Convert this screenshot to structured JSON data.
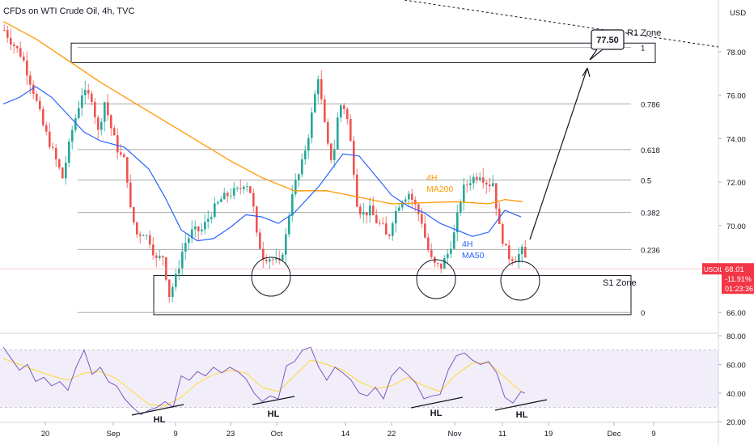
{
  "header": {
    "title": "CFDs on WTI Crude Oil, 4h, TVC",
    "currency": "USD"
  },
  "colors": {
    "bull": "#26a69a",
    "bear": "#ef5350",
    "ma50": "#2962ff",
    "ma200": "#ff9800",
    "rsi": "#7e57c2",
    "rsi_ma": "#fdd835",
    "price_badge": "#f23645"
  },
  "price_badge": {
    "symbol": "USOIL",
    "price": "68.01",
    "change": "-11.91%",
    "countdown": "01:23:36"
  },
  "chart_data": [
    {
      "type": "candlestick",
      "y_axis": {
        "ticks": [
          "78.00",
          "76.00",
          "74.00",
          "72.00",
          "70.00",
          "68.00",
          "66.00"
        ],
        "range": [
          64.8,
          79.2
        ]
      },
      "x_axis": {
        "ticks": [
          "20",
          "Sep",
          "9",
          "23",
          "Oct",
          "14",
          "22",
          "Nov",
          "11",
          "19",
          "Dec",
          "9"
        ]
      },
      "fibonacci": {
        "levels": [
          {
            "label": "1",
            "price": 78.2
          },
          {
            "label": "0.786",
            "price": 75.6
          },
          {
            "label": "0.618",
            "price": 73.5
          },
          {
            "label": "0.5",
            "price": 72.1
          },
          {
            "label": "0.382",
            "price": 70.6
          },
          {
            "label": "0.236",
            "price": 68.9
          },
          {
            "label": "0",
            "price": 66.0
          }
        ]
      },
      "zones": [
        {
          "label": "R1 Zone",
          "top": 78.4,
          "bottom": 77.5
        },
        {
          "label": "S1 Zone",
          "top": 67.7,
          "bottom": 65.9
        }
      ],
      "target": {
        "label": "77.50",
        "price": 77.5
      },
      "moving_averages": [
        {
          "label": [
            "4H",
            "MA200"
          ]
        },
        {
          "label": [
            "4H",
            "MA50"
          ]
        }
      ],
      "series": [
        {
          "kind": "close",
          "path": [
            [
              0,
              79.0
            ],
            [
              10,
              78.4
            ],
            [
              22,
              77.8
            ],
            [
              36,
              76.2
            ],
            [
              48,
              74.6
            ],
            [
              60,
              73.4
            ],
            [
              72,
              72.2
            ],
            [
              84,
              74.4
            ],
            [
              96,
              76.1
            ],
            [
              108,
              75.9
            ],
            [
              116,
              74.3
            ],
            [
              124,
              75.7
            ],
            [
              134,
              74.2
            ],
            [
              142,
              73.3
            ],
            [
              150,
              72.9
            ],
            [
              156,
              70.7
            ],
            [
              164,
              69.6
            ],
            [
              172,
              69.7
            ],
            [
              180,
              69.3
            ],
            [
              188,
              68.4
            ],
            [
              196,
              68.6
            ],
            [
              204,
              66.8
            ],
            [
              212,
              67.6
            ],
            [
              222,
              69.1
            ],
            [
              232,
              69.7
            ],
            [
              244,
              69.8
            ],
            [
              256,
              70.6
            ],
            [
              268,
              71.2
            ],
            [
              280,
              71.5
            ],
            [
              290,
              71.6
            ],
            [
              298,
              72.1
            ],
            [
              306,
              71.4
            ],
            [
              312,
              69.5
            ],
            [
              320,
              68.6
            ],
            [
              330,
              68.5
            ],
            [
              340,
              68.2
            ],
            [
              348,
              69.5
            ],
            [
              356,
              71.6
            ],
            [
              366,
              72.5
            ],
            [
              376,
              74.2
            ],
            [
              388,
              76.9
            ],
            [
              394,
              75.1
            ],
            [
              400,
              73.6
            ],
            [
              406,
              72.9
            ],
            [
              414,
              75.6
            ],
            [
              422,
              75.4
            ],
            [
              430,
              73.3
            ],
            [
              436,
              71.1
            ],
            [
              442,
              70.5
            ],
            [
              452,
              70.7
            ],
            [
              460,
              70.2
            ],
            [
              468,
              69.9
            ],
            [
              474,
              69.3
            ],
            [
              480,
              70.3
            ],
            [
              490,
              71.2
            ],
            [
              500,
              71.5
            ],
            [
              508,
              70.9
            ],
            [
              516,
              70.2
            ],
            [
              522,
              69.1
            ],
            [
              530,
              68.2
            ],
            [
              540,
              68.1
            ],
            [
              548,
              68.7
            ],
            [
              556,
              69.6
            ],
            [
              566,
              71.6
            ],
            [
              576,
              72.1
            ],
            [
              588,
              72.4
            ],
            [
              598,
              71.9
            ],
            [
              604,
              72.0
            ],
            [
              612,
              69.9
            ],
            [
              622,
              68.6
            ],
            [
              632,
              68.5
            ],
            [
              642,
              68.9
            ],
            [
              646,
              68.01
            ]
          ]
        },
        {
          "kind": "ma200",
          "path": [
            [
              0,
              79.4
            ],
            [
              40,
              78.6
            ],
            [
              80,
              77.6
            ],
            [
              120,
              76.6
            ],
            [
              160,
              75.7
            ],
            [
              200,
              74.8
            ],
            [
              240,
              73.9
            ],
            [
              280,
              73.0
            ],
            [
              320,
              72.2
            ],
            [
              360,
              71.6
            ],
            [
              400,
              71.6
            ],
            [
              440,
              71.3
            ],
            [
              480,
              71.0
            ],
            [
              520,
              71.05
            ],
            [
              560,
              71.1
            ],
            [
              600,
              71.0
            ],
            [
              620,
              71.2
            ],
            [
              642,
              71.1
            ]
          ]
        },
        {
          "kind": "ma50",
          "path": [
            [
              0,
              75.6
            ],
            [
              20,
              75.9
            ],
            [
              40,
              76.4
            ],
            [
              60,
              75.9
            ],
            [
              80,
              75.1
            ],
            [
              100,
              74.3
            ],
            [
              120,
              73.9
            ],
            [
              150,
              73.6
            ],
            [
              180,
              72.6
            ],
            [
              200,
              71.3
            ],
            [
              220,
              69.8
            ],
            [
              240,
              69.3
            ],
            [
              260,
              69.4
            ],
            [
              280,
              69.9
            ],
            [
              300,
              70.5
            ],
            [
              320,
              70.4
            ],
            [
              340,
              70.1
            ],
            [
              360,
              70.6
            ],
            [
              390,
              71.8
            ],
            [
              420,
              73.3
            ],
            [
              440,
              73.2
            ],
            [
              460,
              72.3
            ],
            [
              480,
              71.4
            ],
            [
              500,
              70.9
            ],
            [
              520,
              70.6
            ],
            [
              540,
              70.1
            ],
            [
              560,
              69.8
            ],
            [
              580,
              69.5
            ],
            [
              600,
              69.7
            ],
            [
              620,
              70.7
            ],
            [
              640,
              70.4
            ]
          ]
        }
      ]
    },
    {
      "type": "line",
      "name": "RSI",
      "y_axis": {
        "ticks": [
          "80.00",
          "60.00",
          "40.00",
          "20.00"
        ],
        "range": [
          17,
          82
        ]
      },
      "band": [
        30,
        70
      ],
      "annotations": [
        "HL",
        "HL",
        "HL",
        "HL"
      ],
      "series": [
        {
          "kind": "rsi",
          "path": [
            [
              0,
              72
            ],
            [
              10,
              64
            ],
            [
              20,
              56
            ],
            [
              30,
              60
            ],
            [
              40,
              48
            ],
            [
              50,
              51
            ],
            [
              60,
              45
            ],
            [
              70,
              48
            ],
            [
              80,
              42
            ],
            [
              90,
              58
            ],
            [
              100,
              70
            ],
            [
              110,
              53
            ],
            [
              120,
              58
            ],
            [
              130,
              48
            ],
            [
              140,
              45
            ],
            [
              150,
              36
            ],
            [
              160,
              30
            ],
            [
              170,
              25
            ],
            [
              180,
              28
            ],
            [
              190,
              30
            ],
            [
              200,
              34
            ],
            [
              210,
              30
            ],
            [
              220,
              52
            ],
            [
              230,
              49
            ],
            [
              240,
              55
            ],
            [
              250,
              52
            ],
            [
              260,
              58
            ],
            [
              270,
              54
            ],
            [
              280,
              58
            ],
            [
              290,
              55
            ],
            [
              300,
              50
            ],
            [
              310,
              40
            ],
            [
              320,
              34
            ],
            [
              330,
              38
            ],
            [
              340,
              36
            ],
            [
              350,
              59
            ],
            [
              360,
              62
            ],
            [
              370,
              70
            ],
            [
              380,
              72
            ],
            [
              390,
              58
            ],
            [
              400,
              49
            ],
            [
              410,
              58
            ],
            [
              420,
              54
            ],
            [
              430,
              49
            ],
            [
              440,
              40
            ],
            [
              450,
              38
            ],
            [
              460,
              44
            ],
            [
              470,
              36
            ],
            [
              480,
              52
            ],
            [
              490,
              58
            ],
            [
              500,
              53
            ],
            [
              510,
              47
            ],
            [
              520,
              36
            ],
            [
              530,
              38
            ],
            [
              540,
              39
            ],
            [
              550,
              56
            ],
            [
              560,
              66
            ],
            [
              570,
              68
            ],
            [
              580,
              63
            ],
            [
              590,
              60
            ],
            [
              600,
              62
            ],
            [
              610,
              54
            ],
            [
              620,
              37
            ],
            [
              630,
              33
            ],
            [
              640,
              41
            ],
            [
              645,
              40
            ]
          ]
        },
        {
          "kind": "rsi_ma",
          "path": [
            [
              0,
              64
            ],
            [
              20,
              60
            ],
            [
              40,
              56
            ],
            [
              60,
              52
            ],
            [
              80,
              49
            ],
            [
              100,
              54
            ],
            [
              120,
              55
            ],
            [
              140,
              50
            ],
            [
              160,
              41
            ],
            [
              180,
              32
            ],
            [
              200,
              31
            ],
            [
              220,
              37
            ],
            [
              240,
              47
            ],
            [
              260,
              53
            ],
            [
              280,
              56
            ],
            [
              300,
              54
            ],
            [
              320,
              44
            ],
            [
              340,
              41
            ],
            [
              360,
              52
            ],
            [
              380,
              63
            ],
            [
              400,
              60
            ],
            [
              420,
              56
            ],
            [
              440,
              48
            ],
            [
              460,
              43
            ],
            [
              480,
              45
            ],
            [
              500,
              51
            ],
            [
              520,
              45
            ],
            [
              540,
              41
            ],
            [
              560,
              53
            ],
            [
              580,
              61
            ],
            [
              600,
              61
            ],
            [
              620,
              51
            ],
            [
              640,
              41
            ]
          ]
        }
      ]
    }
  ]
}
